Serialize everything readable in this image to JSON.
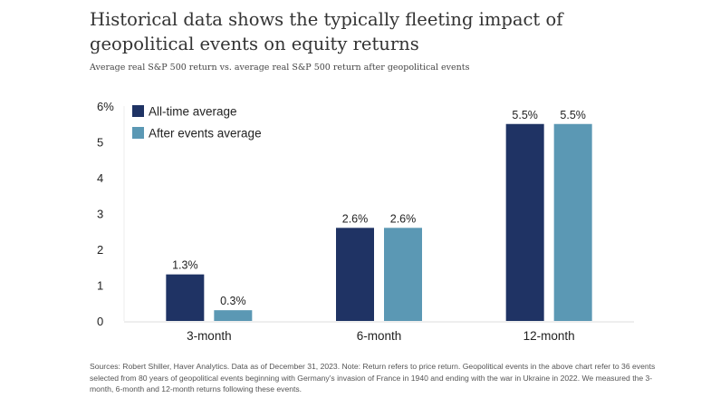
{
  "title": "Historical data shows the typically fleeting impact of geopolitical events on equity returns",
  "subtitle": "Average real S&P 500 return vs. average real S&P 500 return after geopolitical events",
  "note": "Sources: Robert Shiller, Haver Analytics. Data as of December 31, 2023. Note: Return refers to price return. Geopolitical events in the above chart refer to 36 events selected from 80 years of geopolitical events beginning with Germany’s invasion of France in 1940 and ending with the war in Ukraine in 2022. We measured the 3-month, 6-month and 12-month returns following these events.",
  "chart_data": {
    "type": "bar",
    "categories": [
      "3-month",
      "6-month",
      "12-month"
    ],
    "series": [
      {
        "name": "All-time average",
        "values": [
          1.3,
          2.6,
          5.5
        ],
        "labels": [
          "1.3%",
          "2.6%",
          "5.5%"
        ],
        "color": "#1f3364"
      },
      {
        "name": "After events average",
        "values": [
          0.3,
          2.6,
          5.5
        ],
        "labels": [
          "0.3%",
          "2.6%",
          "5.5%"
        ],
        "color": "#5b98b4"
      }
    ],
    "ylim": [
      0,
      6
    ],
    "yticks": [
      "0",
      "1",
      "2",
      "3",
      "4",
      "5",
      "6%"
    ],
    "legend": "top-left",
    "grid": false
  }
}
